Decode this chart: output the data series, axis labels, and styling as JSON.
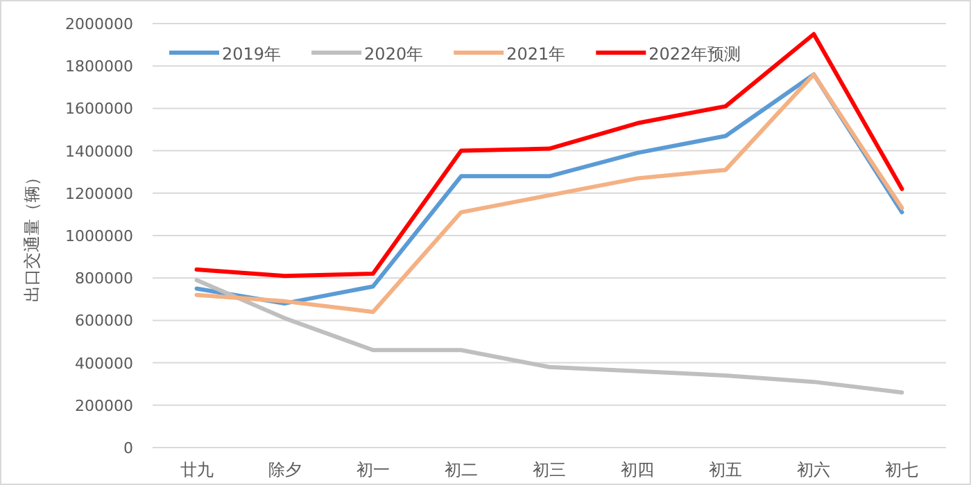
{
  "chart_data": {
    "type": "line",
    "ylabel": "出口交通量（辆）",
    "categories": [
      "廿九",
      "除夕",
      "初一",
      "初二",
      "初三",
      "初四",
      "初五",
      "初六",
      "初七"
    ],
    "series": [
      {
        "name": "2019年",
        "color": "#5b9bd5",
        "values": [
          750000,
          680000,
          760000,
          1280000,
          1280000,
          1390000,
          1470000,
          1760000,
          1110000
        ]
      },
      {
        "name": "2020年",
        "color": "#bfbfbf",
        "values": [
          790000,
          610000,
          460000,
          460000,
          380000,
          360000,
          340000,
          310000,
          260000
        ]
      },
      {
        "name": "2021年",
        "color": "#f4b183",
        "values": [
          720000,
          690000,
          640000,
          1110000,
          1190000,
          1270000,
          1310000,
          1760000,
          1130000
        ]
      },
      {
        "name": "2022年预测",
        "color": "#ff0000",
        "values": [
          840000,
          810000,
          820000,
          1400000,
          1410000,
          1530000,
          1610000,
          1950000,
          1220000
        ]
      }
    ],
    "ylim": [
      0,
      2000000
    ],
    "yticks": [
      0,
      200000,
      400000,
      600000,
      800000,
      1000000,
      1200000,
      1400000,
      1600000,
      1800000,
      2000000
    ],
    "grid": "y",
    "legend": "top left",
    "marker": "none",
    "line_style": "solid"
  }
}
